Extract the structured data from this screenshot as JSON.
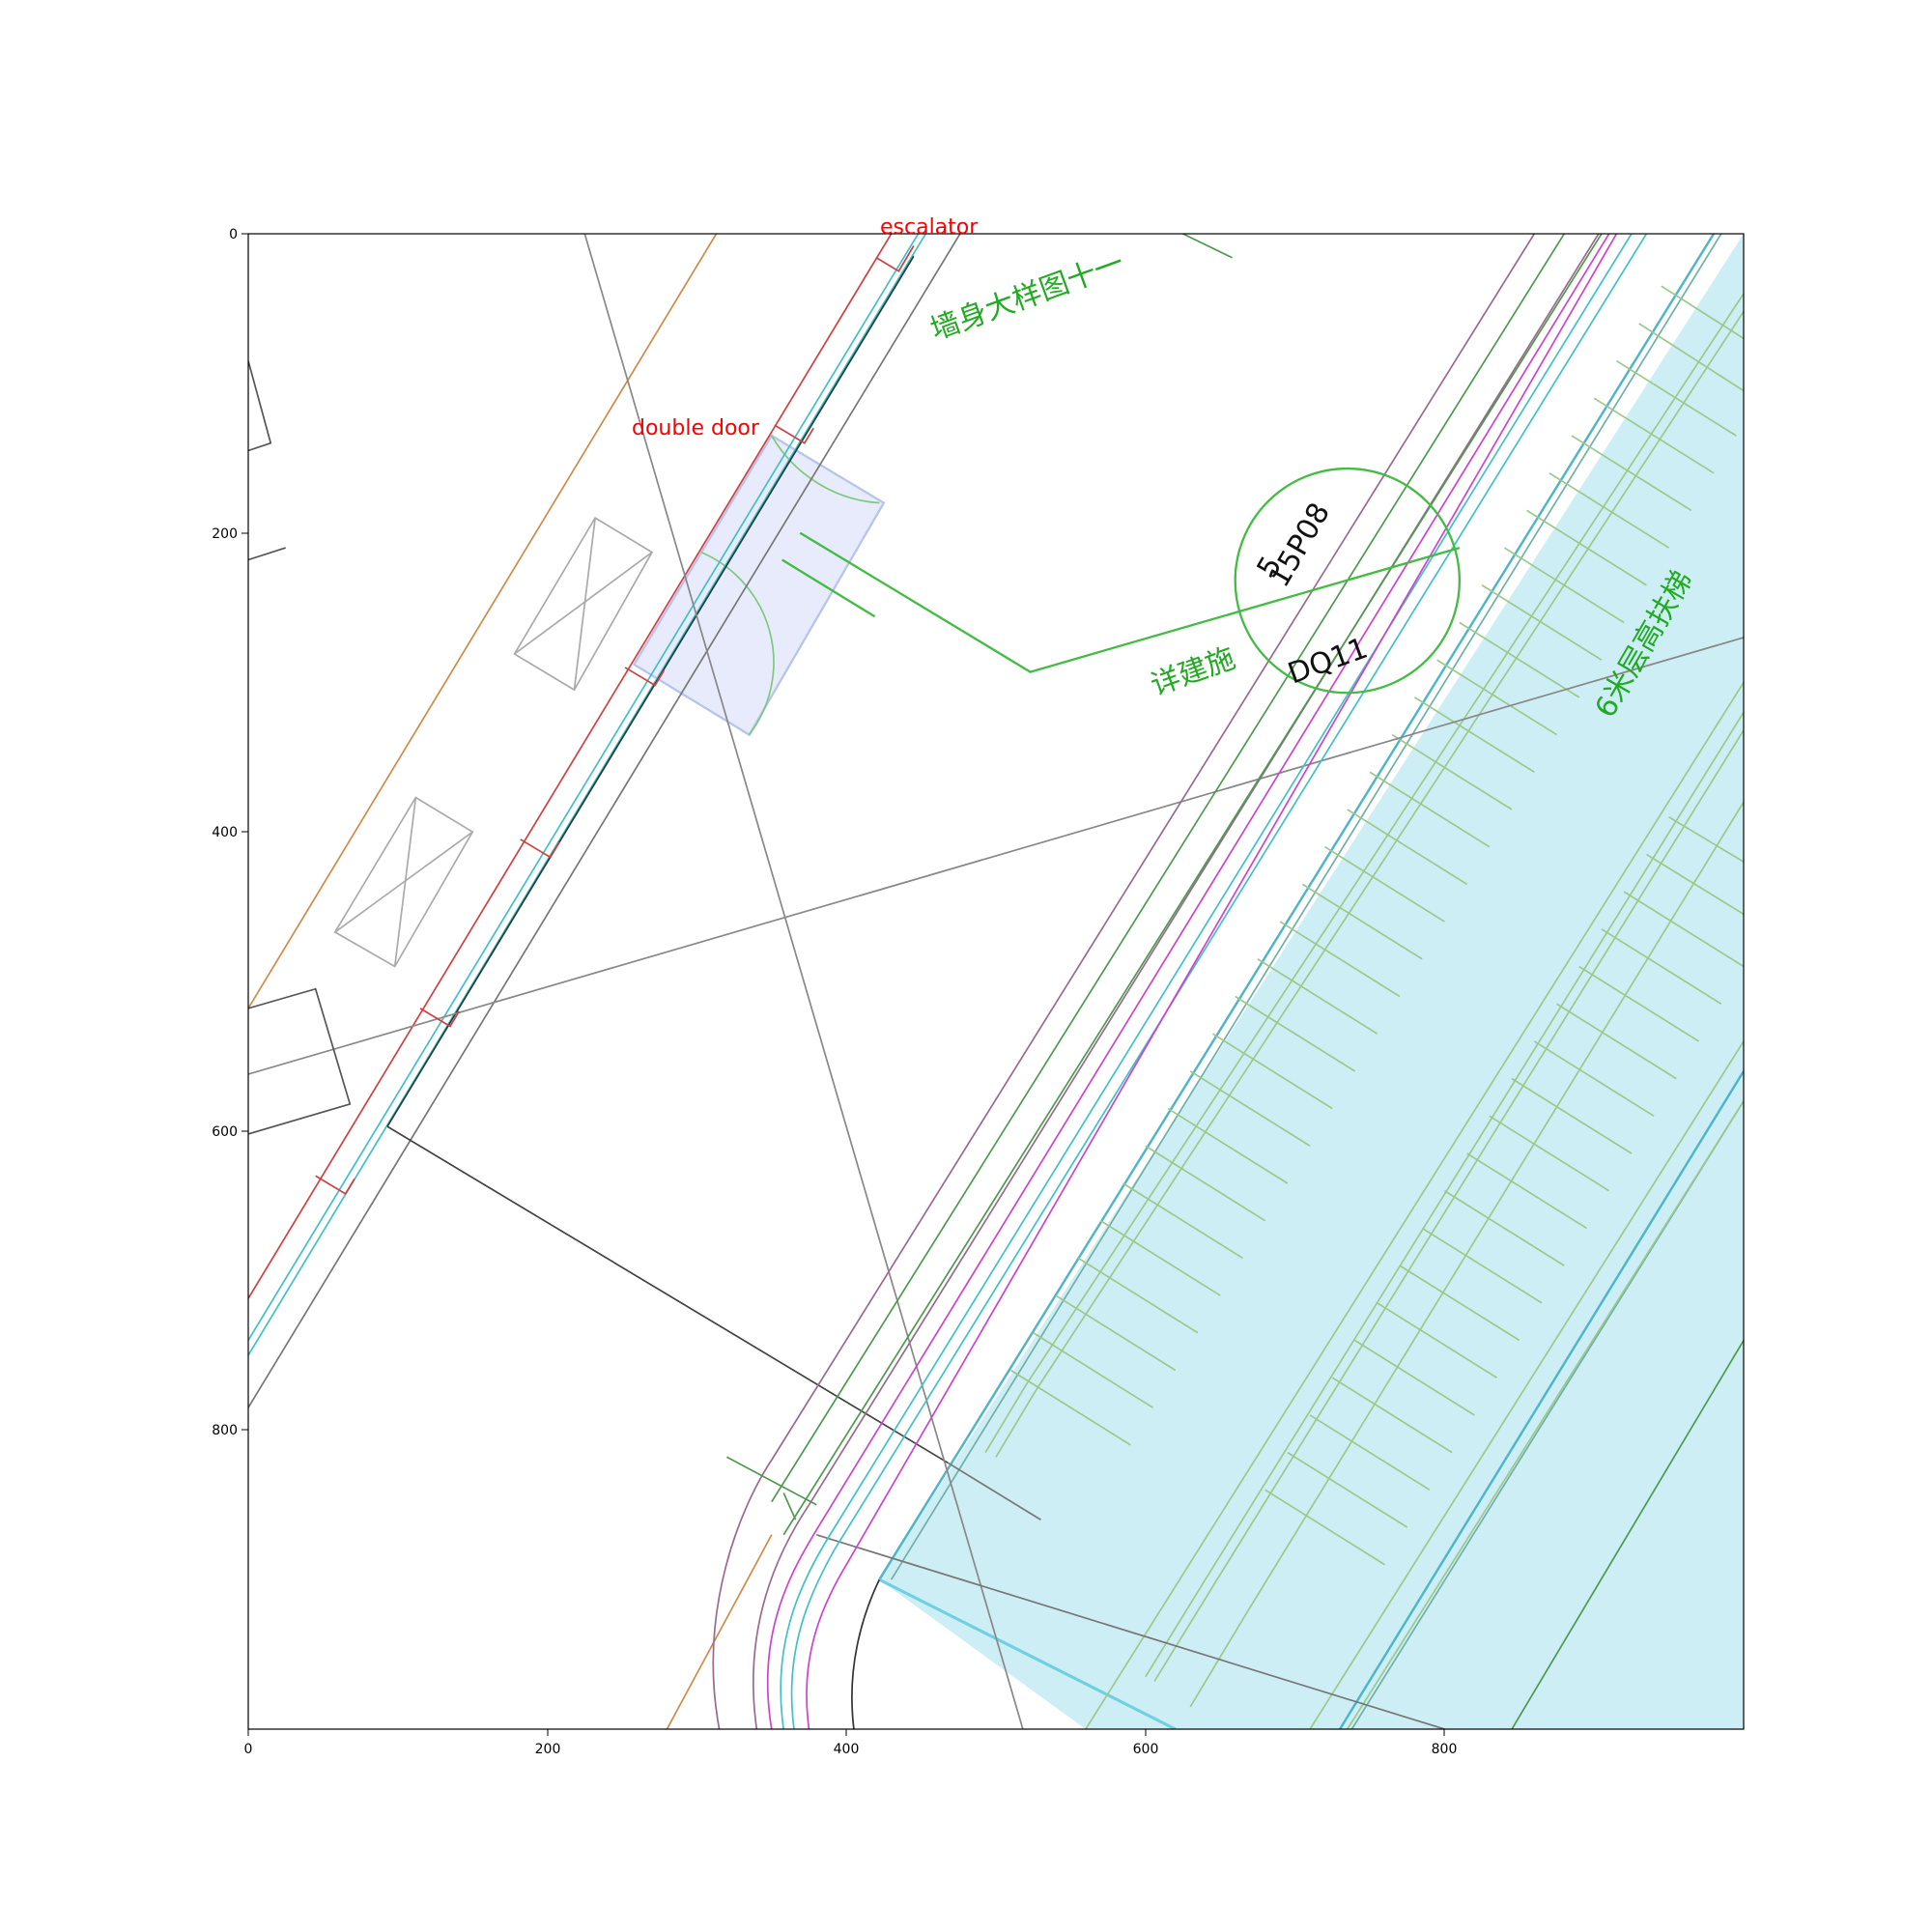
{
  "axes": {
    "x_ticks": [
      "0",
      "200",
      "400",
      "600",
      "800"
    ],
    "y_ticks": [
      "0",
      "200",
      "400",
      "600",
      "800"
    ],
    "xlim": [
      0,
      1000
    ],
    "ylim": [
      1000,
      0
    ]
  },
  "annotations": {
    "escalator_label": "escalator",
    "double_door_label": "double door"
  },
  "drawing_text": {
    "wall_detail": "墙身大样图十一",
    "detail_ref": "详建施",
    "circle_top": "5",
    "circle_code": "15P08",
    "circle_bottom": "DQ11",
    "escalator_note": "6米层高扶梯"
  },
  "colors": {
    "annotation": "#ff0000",
    "escalator_fill": "#cdeef5",
    "escalator_edge": "#4fb6c8",
    "door_fill": "#e8ebfb",
    "cad_green": "#22aa22"
  }
}
